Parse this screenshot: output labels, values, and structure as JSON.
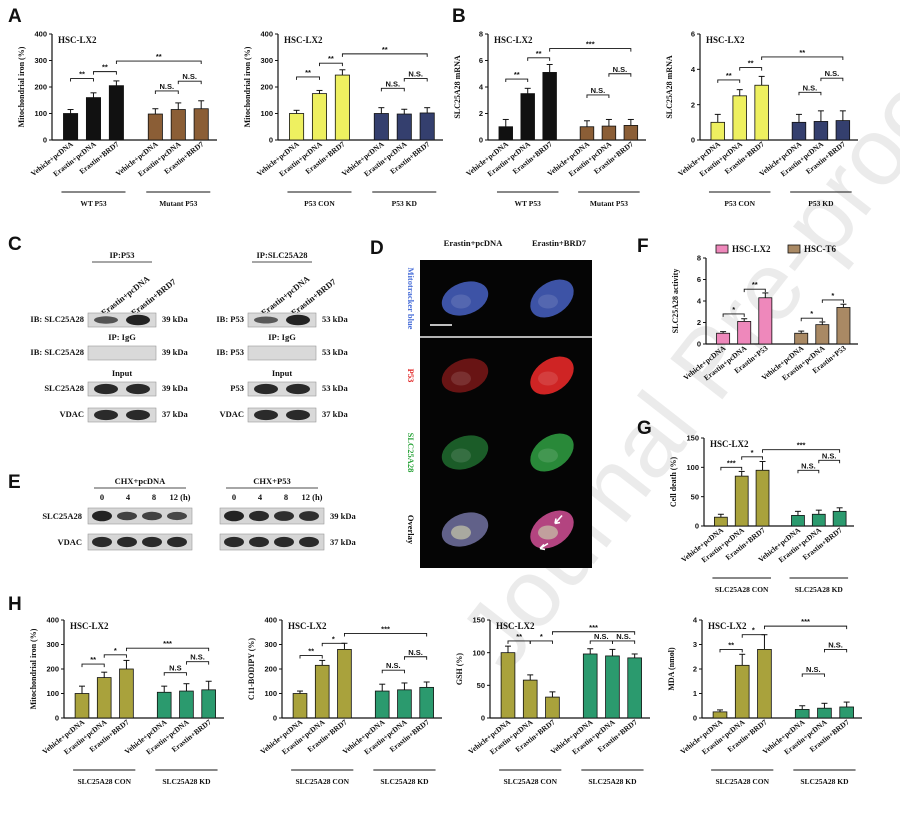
{
  "panels": {
    "A": "A",
    "B": "B",
    "C": "C",
    "D": "D",
    "E": "E",
    "F": "F",
    "G": "G",
    "H": "H"
  },
  "colors": {
    "black": "#111111",
    "yellow": "#eef060",
    "brown": "#8b5e36",
    "navy": "#343f6e",
    "pink": "#ee88bb",
    "tan": "#a98964",
    "olive": "#a9a23c",
    "teal": "#2b9a6e"
  },
  "watermark": "Journal Pre-proof",
  "chart_data": [
    {
      "type": "bar",
      "id": "A1",
      "panel": "A",
      "title": "HSC-LX2",
      "ylabel": "Mitochondrial iron (%)",
      "ylim": [
        0,
        400
      ],
      "yticks": [
        0,
        100,
        200,
        300,
        400
      ],
      "categories": [
        "Vehicle+pcDNA",
        "Erastin+pcDNA",
        "Erastin+BRD7",
        "Vehicle+pcDNA",
        "Erastin+pcDNA",
        "Erastin+BRD7"
      ],
      "values": [
        100,
        160,
        205,
        98,
        115,
        118
      ],
      "errors": [
        15,
        18,
        18,
        20,
        25,
        30
      ],
      "bar_colors": [
        "black",
        "black",
        "black",
        "brown",
        "brown",
        "brown"
      ],
      "groups": [
        {
          "label": "WT P53",
          "span": [
            0,
            2
          ]
        },
        {
          "label": "Mutant P53",
          "span": [
            3,
            5
          ]
        }
      ],
      "sig": [
        {
          "from": 0,
          "to": 1,
          "level": 232,
          "label": "**"
        },
        {
          "from": 1,
          "to": 2,
          "level": 258,
          "label": "**"
        },
        {
          "from": 2,
          "to": 5,
          "level": 298,
          "label": "**"
        },
        {
          "from": 3,
          "to": 4,
          "level": 185,
          "label": "N.S."
        },
        {
          "from": 4,
          "to": 5,
          "level": 222,
          "label": "N.S."
        }
      ]
    },
    {
      "type": "bar",
      "id": "A2",
      "panel": "A",
      "title": "HSC-LX2",
      "ylabel": "Mitochondrial iron (%)",
      "ylim": [
        0,
        400
      ],
      "yticks": [
        0,
        100,
        200,
        300,
        400
      ],
      "categories": [
        "Vehicle+pcDNA",
        "Erastin+pcDNA",
        "Erastin+BRD7",
        "Vehicle+pcDNA",
        "Erastin+pcDNA",
        "Erastin+BRD7"
      ],
      "values": [
        100,
        175,
        245,
        100,
        98,
        102
      ],
      "errors": [
        12,
        12,
        20,
        22,
        18,
        20
      ],
      "bar_colors": [
        "yellow",
        "yellow",
        "yellow",
        "navy",
        "navy",
        "navy"
      ],
      "groups": [
        {
          "label": "P53 CON",
          "span": [
            0,
            2
          ]
        },
        {
          "label": "P53 KD",
          "span": [
            3,
            5
          ]
        }
      ],
      "sig": [
        {
          "from": 0,
          "to": 1,
          "level": 238,
          "label": "**"
        },
        {
          "from": 1,
          "to": 2,
          "level": 290,
          "label": "**"
        },
        {
          "from": 2,
          "to": 5,
          "level": 325,
          "label": "**"
        },
        {
          "from": 3,
          "to": 4,
          "level": 195,
          "label": "N.S."
        },
        {
          "from": 4,
          "to": 5,
          "level": 232,
          "label": "N.S."
        }
      ]
    },
    {
      "type": "bar",
      "id": "B1",
      "panel": "B",
      "title": "HSC-LX2",
      "ylabel": "SLC25A28 mRNA",
      "ylim": [
        0,
        8
      ],
      "yticks": [
        0,
        2,
        4,
        6,
        8
      ],
      "categories": [
        "Vehicle+pcDNA",
        "Erastin+pcDNA",
        "Erastin+BRD7",
        "Vehicle+pcDNA",
        "Erastin+pcDNA",
        "Erastin+BRD7"
      ],
      "values": [
        1.0,
        3.5,
        5.1,
        1.0,
        1.05,
        1.1
      ],
      "errors": [
        0.55,
        0.4,
        0.6,
        0.45,
        0.5,
        0.45
      ],
      "bar_colors": [
        "black",
        "black",
        "black",
        "brown",
        "brown",
        "brown"
      ],
      "groups": [
        {
          "label": "WT P53",
          "span": [
            0,
            2
          ]
        },
        {
          "label": "Mutant P53",
          "span": [
            3,
            5
          ]
        }
      ],
      "sig": [
        {
          "from": 0,
          "to": 1,
          "level": 4.6,
          "label": "**"
        },
        {
          "from": 1,
          "to": 2,
          "level": 6.2,
          "label": "**"
        },
        {
          "from": 2,
          "to": 5,
          "level": 6.9,
          "label": "***"
        },
        {
          "from": 3,
          "to": 4,
          "level": 3.4,
          "label": "N.S."
        },
        {
          "from": 4,
          "to": 5,
          "level": 5.0,
          "label": "N.S."
        }
      ]
    },
    {
      "type": "bar",
      "id": "B2",
      "panel": "B",
      "title": "HSC-LX2",
      "ylabel": "SLC25A28 mRNA",
      "ylim": [
        0,
        6
      ],
      "yticks": [
        0,
        2,
        4,
        6
      ],
      "categories": [
        "Vehicle+pcDNA",
        "Erastin+pcDNA",
        "Erastin+BRD7",
        "Vehicle+pcDNA",
        "Erastin+pcDNA",
        "Erastin+BRD7"
      ],
      "values": [
        1.0,
        2.5,
        3.1,
        1.0,
        1.05,
        1.1
      ],
      "errors": [
        0.45,
        0.35,
        0.5,
        0.45,
        0.6,
        0.55
      ],
      "bar_colors": [
        "yellow",
        "yellow",
        "yellow",
        "navy",
        "navy",
        "navy"
      ],
      "groups": [
        {
          "label": "P53 CON",
          "span": [
            0,
            2
          ]
        },
        {
          "label": "P53 KD",
          "span": [
            3,
            5
          ]
        }
      ],
      "sig": [
        {
          "from": 0,
          "to": 1,
          "level": 3.4,
          "label": "**"
        },
        {
          "from": 1,
          "to": 2,
          "level": 4.1,
          "label": "**"
        },
        {
          "from": 2,
          "to": 5,
          "level": 4.7,
          "label": "**"
        },
        {
          "from": 3,
          "to": 4,
          "level": 2.7,
          "label": "N.S."
        },
        {
          "from": 4,
          "to": 5,
          "level": 3.5,
          "label": "N.S."
        }
      ]
    },
    {
      "type": "bar",
      "id": "F",
      "panel": "F",
      "title": "",
      "ylabel": "SLC25A28 activity",
      "ylim": [
        0,
        8
      ],
      "yticks": [
        0,
        2,
        4,
        6,
        8
      ],
      "categories": [
        "Vehicle+pcDNA",
        "Erastin+pcDNA",
        "Erastin+P53",
        "Vehicle+pcDNA",
        "Erastin+pcDNA",
        "Erastin+P53"
      ],
      "values": [
        1.0,
        2.1,
        4.3,
        1.0,
        1.8,
        3.4
      ],
      "errors": [
        0.15,
        0.25,
        0.45,
        0.2,
        0.25,
        0.3
      ],
      "bar_colors": [
        "pink",
        "pink",
        "pink",
        "tan",
        "tan",
        "tan"
      ],
      "legend": [
        {
          "label": "HSC-LX2",
          "color": "pink"
        },
        {
          "label": "HSC-T6",
          "color": "tan"
        }
      ],
      "groups": [],
      "sig": [
        {
          "from": 0,
          "to": 1,
          "level": 2.8,
          "label": "*"
        },
        {
          "from": 1,
          "to": 2,
          "level": 5.1,
          "label": "**"
        },
        {
          "from": 3,
          "to": 4,
          "level": 2.4,
          "label": "*"
        },
        {
          "from": 4,
          "to": 5,
          "level": 4.1,
          "label": "*"
        }
      ]
    },
    {
      "type": "bar",
      "id": "G",
      "panel": "G",
      "title": "HSC-LX2",
      "ylabel": "Cell death (%)",
      "ylim": [
        0,
        150
      ],
      "yticks": [
        0,
        50,
        100,
        150
      ],
      "categories": [
        "Vehicle+pcDNA",
        "Erastin+pcDNA",
        "Erastin+BRD7",
        "Vehicle+pcDNA",
        "Erastin+pcDNA",
        "Erastin+BRD7"
      ],
      "values": [
        15,
        85,
        95,
        18,
        20,
        25
      ],
      "errors": [
        5,
        8,
        15,
        7,
        7,
        6
      ],
      "bar_colors": [
        "olive",
        "olive",
        "olive",
        "teal",
        "teal",
        "teal"
      ],
      "groups": [
        {
          "label": "SLC25A28 CON",
          "span": [
            0,
            2
          ]
        },
        {
          "label": "SLC25A28 KD",
          "span": [
            3,
            5
          ]
        }
      ],
      "sig": [
        {
          "from": 0,
          "to": 1,
          "level": 100,
          "label": "***"
        },
        {
          "from": 1,
          "to": 2,
          "level": 118,
          "label": "*"
        },
        {
          "from": 2,
          "to": 5,
          "level": 130,
          "label": "***"
        },
        {
          "from": 3,
          "to": 4,
          "level": 95,
          "label": "N.S."
        },
        {
          "from": 4,
          "to": 5,
          "level": 112,
          "label": "N.S."
        }
      ]
    },
    {
      "type": "bar",
      "id": "H1",
      "panel": "H",
      "title": "HSC-LX2",
      "ylabel": "Mitochondrial iron (%)",
      "ylim": [
        0,
        400
      ],
      "yticks": [
        0,
        100,
        200,
        300,
        400
      ],
      "categories": [
        "Vehicle+pcDNA",
        "Erastin+pcDNA",
        "Erastin+BRD7",
        "Vehicle+pcDNA",
        "Erastin+pcDNA",
        "Erastin+BRD7"
      ],
      "values": [
        100,
        165,
        200,
        105,
        110,
        115
      ],
      "errors": [
        30,
        22,
        35,
        25,
        30,
        35
      ],
      "bar_colors": [
        "olive",
        "olive",
        "olive",
        "teal",
        "teal",
        "teal"
      ],
      "groups": [
        {
          "label": "SLC25A28 CON",
          "span": [
            0,
            2
          ]
        },
        {
          "label": "SLC25A28 KD",
          "span": [
            3,
            5
          ]
        }
      ],
      "sig": [
        {
          "from": 0,
          "to": 1,
          "level": 220,
          "label": "**"
        },
        {
          "from": 1,
          "to": 2,
          "level": 258,
          "label": "*"
        },
        {
          "from": 2,
          "to": 5,
          "level": 285,
          "label": "***"
        },
        {
          "from": 3,
          "to": 4,
          "level": 185,
          "label": "N.S"
        },
        {
          "from": 4,
          "to": 5,
          "level": 230,
          "label": "N.S."
        }
      ]
    },
    {
      "type": "bar",
      "id": "H2",
      "panel": "H",
      "title": "HSC-LX2",
      "ylabel": "C11-BODIPY (%)",
      "ylim": [
        0,
        400
      ],
      "yticks": [
        0,
        100,
        200,
        300,
        400
      ],
      "categories": [
        "Vehicle+pcDNA",
        "Erastin+pcDNA",
        "Erastin+BRD7",
        "Vehicle+pcDNA",
        "Erastin+pcDNA",
        "Erastin+BRD7"
      ],
      "values": [
        100,
        215,
        280,
        110,
        115,
        125
      ],
      "errors": [
        10,
        20,
        25,
        28,
        28,
        22
      ],
      "bar_colors": [
        "olive",
        "olive",
        "olive",
        "teal",
        "teal",
        "teal"
      ],
      "groups": [
        {
          "label": "SLC25A28 CON",
          "span": [
            0,
            2
          ]
        },
        {
          "label": "SLC25A28 KD",
          "span": [
            3,
            5
          ]
        }
      ],
      "sig": [
        {
          "from": 0,
          "to": 1,
          "level": 255,
          "label": "**"
        },
        {
          "from": 1,
          "to": 2,
          "level": 305,
          "label": "*"
        },
        {
          "from": 2,
          "to": 5,
          "level": 345,
          "label": "***"
        },
        {
          "from": 3,
          "to": 4,
          "level": 195,
          "label": "N.S."
        },
        {
          "from": 4,
          "to": 5,
          "level": 250,
          "label": "N.S."
        }
      ]
    },
    {
      "type": "bar",
      "id": "H3",
      "panel": "H",
      "title": "HSC-LX2",
      "ylabel": "GSH (%)",
      "ylim": [
        0,
        150
      ],
      "yticks": [
        0,
        50,
        100,
        150
      ],
      "categories": [
        "Vehicle+pcDNA",
        "Erastin+pcDNA",
        "Erastin+BRD7",
        "Vehicle+pcDNA",
        "Erastin+pcDNA",
        "Erastin+BRD7"
      ],
      "values": [
        100,
        58,
        32,
        98,
        95,
        92
      ],
      "errors": [
        10,
        8,
        8,
        8,
        10,
        6
      ],
      "bar_colors": [
        "olive",
        "olive",
        "olive",
        "teal",
        "teal",
        "teal"
      ],
      "groups": [
        {
          "label": "SLC25A28 CON",
          "span": [
            0,
            2
          ]
        },
        {
          "label": "SLC25A28 KD",
          "span": [
            3,
            5
          ]
        }
      ],
      "sig": [
        {
          "from": 0,
          "to": 1,
          "level": 118,
          "label": "**"
        },
        {
          "from": 1,
          "to": 2,
          "level": 118,
          "label": "*"
        },
        {
          "from": 2,
          "to": 5,
          "level": 132,
          "label": "***"
        },
        {
          "from": 3,
          "to": 4,
          "level": 118,
          "label": "N.S."
        },
        {
          "from": 4,
          "to": 5,
          "level": 118,
          "label": "N.S."
        }
      ]
    },
    {
      "type": "bar",
      "id": "H4",
      "panel": "H",
      "title": "HSC-LX2",
      "ylabel": "MDA (nmol)",
      "ylim": [
        0,
        4
      ],
      "yticks": [
        0,
        1,
        2,
        3,
        4
      ],
      "categories": [
        "Vehicle+pcDNA",
        "Erastin+pcDNA",
        "Erastin+BRD7",
        "Vehicle+pcDNA",
        "Erastin+pcDNA",
        "Erastin+BRD7"
      ],
      "values": [
        0.25,
        2.15,
        2.8,
        0.35,
        0.4,
        0.45
      ],
      "errors": [
        0.08,
        0.45,
        0.6,
        0.15,
        0.2,
        0.2
      ],
      "bar_colors": [
        "olive",
        "olive",
        "olive",
        "teal",
        "teal",
        "teal"
      ],
      "groups": [
        {
          "label": "SLC25A28 CON",
          "span": [
            0,
            2
          ]
        },
        {
          "label": "SLC25A28 KD",
          "span": [
            3,
            5
          ]
        }
      ],
      "sig": [
        {
          "from": 0,
          "to": 1,
          "level": 2.8,
          "label": "**"
        },
        {
          "from": 1,
          "to": 2,
          "level": 3.4,
          "label": "*"
        },
        {
          "from": 2,
          "to": 5,
          "level": 3.75,
          "label": "***"
        },
        {
          "from": 3,
          "to": 4,
          "level": 1.8,
          "label": "N.S."
        },
        {
          "from": 4,
          "to": 5,
          "level": 2.8,
          "label": "N.S."
        }
      ]
    }
  ],
  "panelC": {
    "ip_p53": {
      "header": "IP:P53",
      "lanes": [
        "Erastin+pcDNA",
        "Erastin+BRD7"
      ],
      "rows": [
        {
          "label": "IB: SLC25A28",
          "kda": "39 kDa",
          "bands": [
            0.55,
            0.95
          ]
        },
        {
          "label": "IB: SLC25A28",
          "kda": "39 kDa",
          "bands": [
            0,
            0
          ]
        },
        {
          "label": "SLC25A28",
          "kda": "39 kDa",
          "bands": [
            0.9,
            0.9
          ]
        },
        {
          "label": "VDAC",
          "kda": "37 kDa",
          "bands": [
            0.9,
            0.9
          ]
        }
      ]
    },
    "ip_slc": {
      "header": "IP:SLC25A28",
      "lanes": [
        "Erastin+pcDNA",
        "Erastin+BRD7"
      ],
      "rows": [
        {
          "label": "IB: P53",
          "kda": "53 kDa",
          "bands": [
            0.5,
            0.95
          ]
        },
        {
          "label": "IB: P53",
          "kda": "53 kDa",
          "bands": [
            0,
            0
          ]
        },
        {
          "label": "P53",
          "kda": "53 kDa",
          "bands": [
            0.9,
            0.9
          ]
        },
        {
          "label": "VDAC",
          "kda": "37 kDa",
          "bands": [
            0.9,
            0.9
          ]
        }
      ]
    },
    "igg_label": "IP: IgG",
    "input_label": "Input"
  },
  "panelD": {
    "cols": [
      "Erastin+pcDNA",
      "Erastin+BRD7"
    ],
    "rows": [
      {
        "label": "Mitotracker blue",
        "color": "#4a6fd8"
      },
      {
        "label": "P53",
        "color": "#e02020"
      },
      {
        "label": "SLC25A28",
        "color": "#2aa33a"
      },
      {
        "label": "Overlay",
        "color": "#111111"
      }
    ]
  },
  "panelE": {
    "groups": [
      {
        "label": "CHX+pcDNA",
        "times": [
          "0",
          "4",
          "8",
          "12 (h)"
        ],
        "bands": [
          0.95,
          0.7,
          0.7,
          0.65
        ]
      },
      {
        "label": "CHX+P53",
        "times": [
          "0",
          "4",
          "8",
          "12 (h)"
        ],
        "bands": [
          0.95,
          0.9,
          0.85,
          0.85
        ]
      }
    ],
    "rows": [
      {
        "label": "SLC25A28",
        "kda": "39 kDa"
      },
      {
        "label": "VDAC",
        "kda": "37 kDa"
      }
    ]
  }
}
